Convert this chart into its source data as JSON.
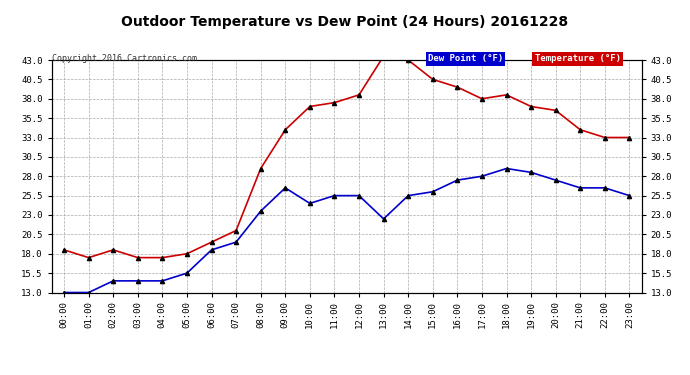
{
  "title": "Outdoor Temperature vs Dew Point (24 Hours) 20161228",
  "copyright": "Copyright 2016 Cartronics.com",
  "x_labels": [
    "00:00",
    "01:00",
    "02:00",
    "03:00",
    "04:00",
    "05:00",
    "06:00",
    "07:00",
    "08:00",
    "09:00",
    "10:00",
    "11:00",
    "12:00",
    "13:00",
    "14:00",
    "15:00",
    "16:00",
    "17:00",
    "18:00",
    "19:00",
    "20:00",
    "21:00",
    "22:00",
    "23:00"
  ],
  "temperature": [
    18.5,
    17.5,
    18.5,
    17.5,
    17.5,
    18.0,
    19.5,
    21.0,
    29.0,
    34.0,
    37.0,
    37.5,
    38.5,
    43.5,
    43.0,
    40.5,
    39.5,
    38.0,
    38.5,
    37.0,
    36.5,
    34.0,
    33.0,
    33.0
  ],
  "dew_point": [
    13.0,
    13.0,
    14.5,
    14.5,
    14.5,
    15.5,
    18.5,
    19.5,
    23.5,
    26.5,
    24.5,
    25.5,
    25.5,
    22.5,
    25.5,
    26.0,
    27.5,
    28.0,
    29.0,
    28.5,
    27.5,
    26.5,
    26.5,
    25.5
  ],
  "temp_color": "#cc0000",
  "dew_color": "#0000cc",
  "bg_color": "#ffffff",
  "grid_color": "#aaaaaa",
  "ylim_min": 13.0,
  "ylim_max": 43.0,
  "yticks": [
    13.0,
    15.5,
    18.0,
    20.5,
    23.0,
    25.5,
    28.0,
    30.5,
    33.0,
    35.5,
    38.0,
    40.5,
    43.0
  ],
  "legend_dew_bg": "#0000cc",
  "legend_temp_bg": "#cc0000",
  "legend_dew_text": "Dew Point (°F)",
  "legend_temp_text": "Temperature (°F)",
  "marker": "^",
  "marker_color": "#000000",
  "marker_size": 3,
  "linewidth": 1.2
}
